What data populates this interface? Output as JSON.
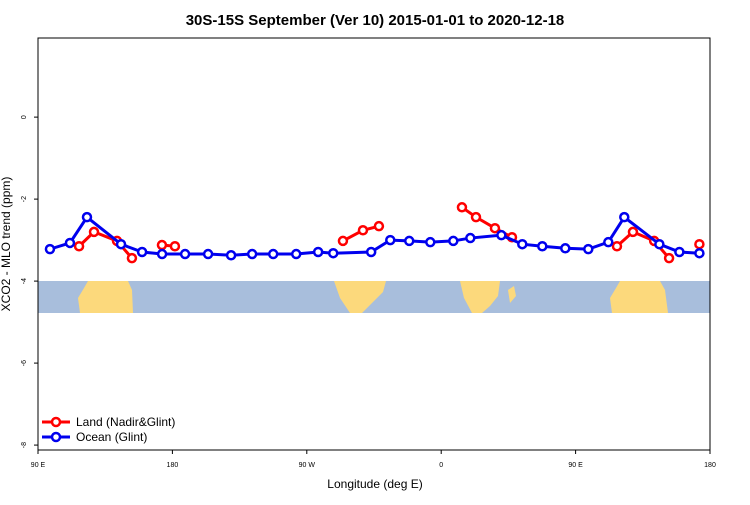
{
  "chart_data": {
    "type": "line",
    "title": "30S-15S September (Ver 10)   2015-01-01 to 2020-12-18",
    "x_label": "Longitude (deg E)",
    "y_label": "XCO2 - MLO trend (ppm)",
    "xlim": [
      90,
      540
    ],
    "xticks": [
      {
        "value": 90,
        "label": "90 E"
      },
      180,
      {
        "value": 270,
        "label": "90 W"
      },
      {
        "value": 360,
        "label": "0"
      },
      {
        "value": 450,
        "label": "90 E"
      },
      {
        "value": 540,
        "label": "180"
      }
    ],
    "ylim": [
      -8.12,
      1.93
    ],
    "yticks": [
      0,
      -2,
      -4,
      -6,
      -8
    ],
    "legend": "bottom-left",
    "series": [
      {
        "name": "Land (Nadir&Glint)",
        "color": "#ff0000",
        "x": [
          117.5,
          127.5,
          142.9,
          152.9,
          null,
          173.0,
          181.7,
          null,
          294.2,
          307.6,
          318.3,
          null,
          373.9,
          383.3,
          396.0,
          407.4,
          null,
          477.7,
          488.4,
          502.6,
          512.6,
          null,
          532.9
        ],
        "values": [
          -3.15,
          -2.8,
          -3.02,
          -3.44,
          null,
          -3.12,
          -3.15,
          null,
          -3.02,
          -2.76,
          -2.66,
          null,
          -2.2,
          -2.44,
          -2.71,
          -2.93,
          null,
          -3.15,
          -2.8,
          -3.02,
          -3.44,
          null,
          -3.1
        ]
      },
      {
        "name": "Ocean (Glint)",
        "color": "#0000ee",
        "x": [
          98.0,
          111.4,
          122.8,
          145.6,
          159.7,
          173.1,
          188.5,
          203.9,
          219.3,
          233.4,
          247.5,
          262.9,
          277.6,
          287.7,
          313.1,
          325.9,
          338.6,
          352.7,
          368.1,
          379.5,
          400.3,
          414.3,
          427.7,
          443.1,
          458.5,
          471.9,
          482.6,
          506.1,
          519.5,
          532.9
        ],
        "values": [
          -3.22,
          -3.07,
          -2.44,
          -3.1,
          -3.29,
          -3.34,
          -3.34,
          -3.34,
          -3.37,
          -3.34,
          -3.34,
          -3.34,
          -3.29,
          -3.32,
          -3.29,
          -3.0,
          -3.02,
          -3.05,
          -3.02,
          -2.95,
          -2.88,
          -3.1,
          -3.15,
          -3.2,
          -3.22,
          -3.05,
          -2.44,
          -3.1,
          -3.29,
          -3.32
        ]
      }
    ]
  }
}
